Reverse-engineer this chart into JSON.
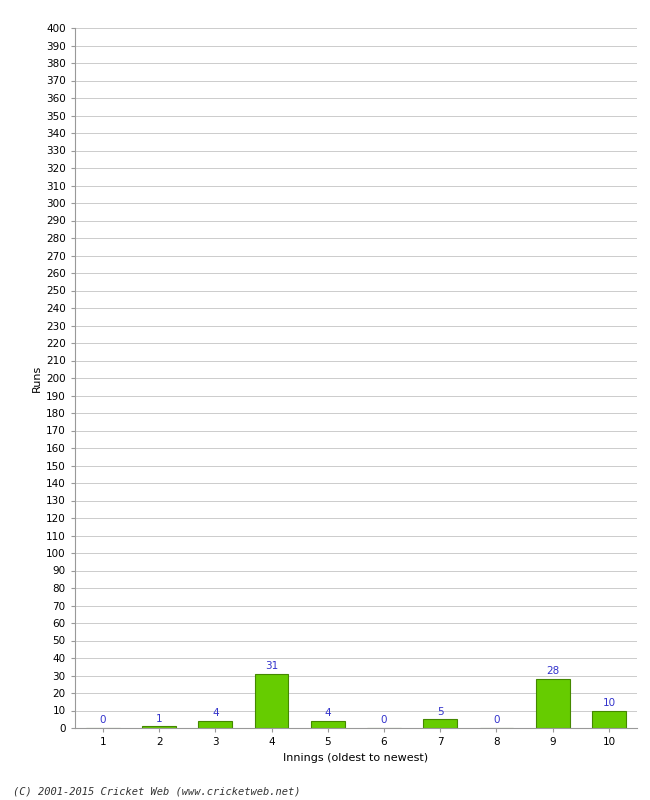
{
  "categories": [
    1,
    2,
    3,
    4,
    5,
    6,
    7,
    8,
    9,
    10
  ],
  "values": [
    0,
    1,
    4,
    31,
    4,
    0,
    5,
    0,
    28,
    10
  ],
  "bar_color": "#66cc00",
  "bar_edge_color": "#448800",
  "label_color": "#3333cc",
  "xlabel": "Innings (oldest to newest)",
  "ylabel": "Runs",
  "ylim": [
    0,
    400
  ],
  "ytick_step": 10,
  "background_color": "#ffffff",
  "grid_color": "#cccccc",
  "footer": "(C) 2001-2015 Cricket Web (www.cricketweb.net)",
  "label_fontsize": 7.5,
  "axis_tick_fontsize": 7.5,
  "axis_label_fontsize": 8,
  "footer_fontsize": 7.5
}
